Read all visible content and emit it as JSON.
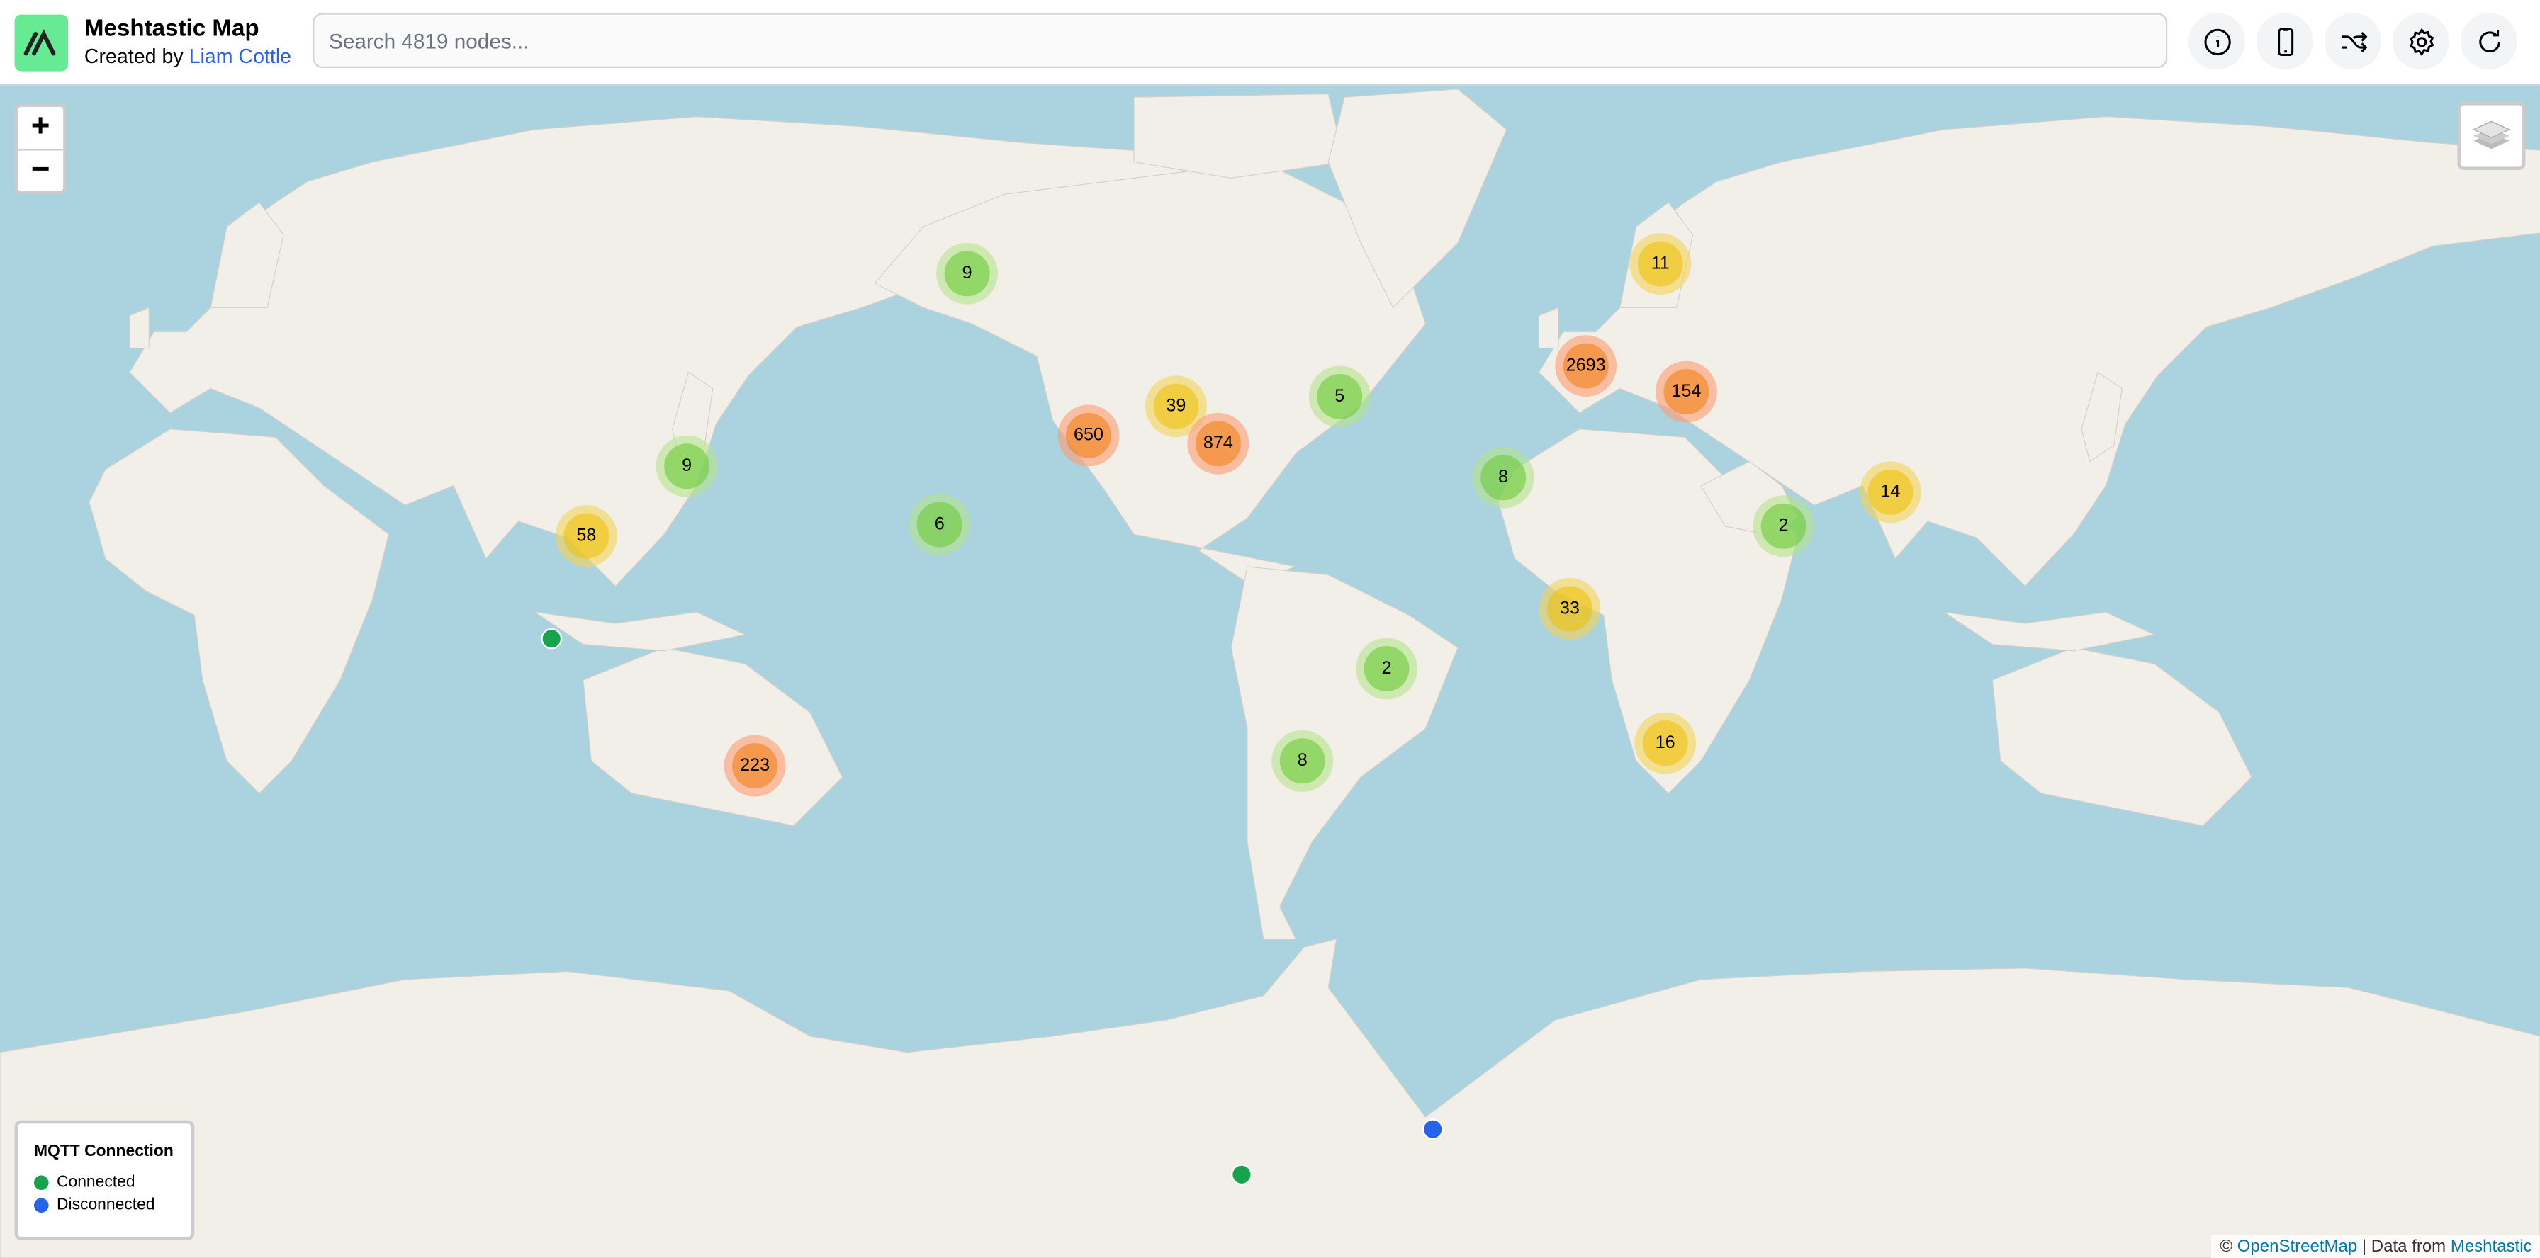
{
  "header": {
    "title": "Meshtastic Map",
    "subtitle_prefix": "Created by ",
    "author": "Liam Cottle",
    "search_placeholder": "Search 4819 nodes...",
    "buttons": [
      {
        "icon": "info-icon"
      },
      {
        "icon": "phone-icon"
      },
      {
        "icon": "shuffle-icon"
      },
      {
        "icon": "gear-icon"
      },
      {
        "icon": "refresh-icon"
      }
    ]
  },
  "map": {
    "zoom_in": "+",
    "zoom_out": "−",
    "colors": {
      "water": "#aad3df",
      "land": "#f2efe9",
      "connected": "#16a34a",
      "disconnected": "#2563eb"
    },
    "clusters": [
      {
        "count": "9",
        "level": "small"
      },
      {
        "count": "11",
        "level": "medium"
      },
      {
        "count": "2693",
        "level": "large"
      },
      {
        "count": "154",
        "level": "large"
      },
      {
        "count": "5",
        "level": "small"
      },
      {
        "count": "39",
        "level": "medium"
      },
      {
        "count": "650",
        "level": "large"
      },
      {
        "count": "874",
        "level": "large"
      },
      {
        "count": "9",
        "level": "small"
      },
      {
        "count": "8",
        "level": "small"
      },
      {
        "count": "14",
        "level": "medium"
      },
      {
        "count": "58",
        "level": "medium"
      },
      {
        "count": "6",
        "level": "small"
      },
      {
        "count": "2",
        "level": "small"
      },
      {
        "count": "33",
        "level": "medium"
      },
      {
        "count": "2",
        "level": "small"
      },
      {
        "count": "223",
        "level": "large"
      },
      {
        "count": "8",
        "level": "small"
      },
      {
        "count": "16",
        "level": "medium"
      }
    ],
    "nodes": [
      {
        "status": "connected"
      },
      {
        "status": "connected"
      },
      {
        "status": "disconnected"
      }
    ]
  },
  "legend": {
    "title": "MQTT Connection",
    "items": [
      {
        "label": "Connected",
        "color": "#16a34a"
      },
      {
        "label": "Disconnected",
        "color": "#2563eb"
      }
    ]
  },
  "attribution": {
    "prefix": "© ",
    "osm": "OpenStreetMap",
    "separator": " | Data from ",
    "source": "Meshtastic"
  }
}
